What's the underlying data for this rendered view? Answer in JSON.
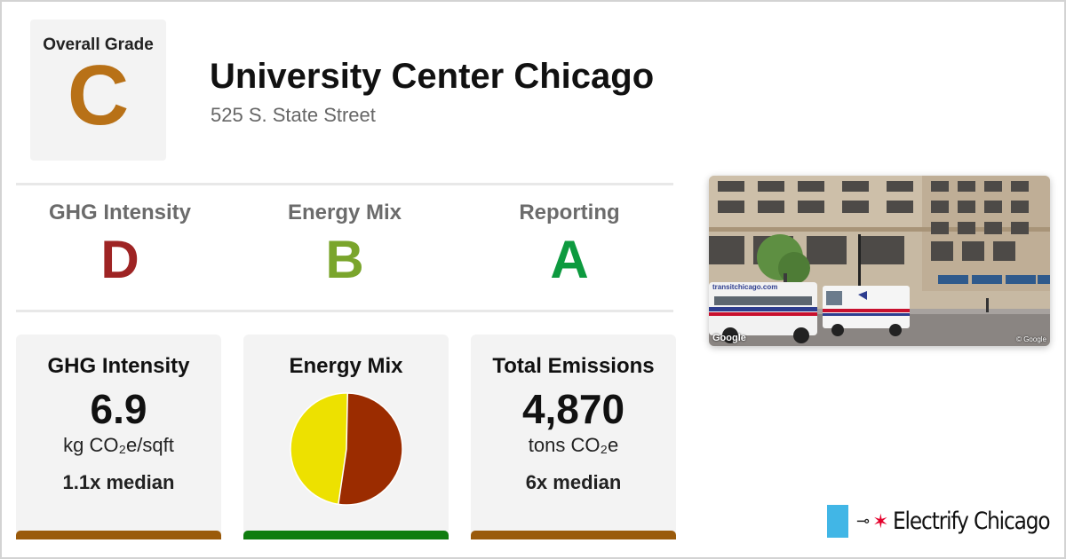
{
  "overall": {
    "label": "Overall Grade",
    "grade": "C",
    "color": "#b87117"
  },
  "building": {
    "name": "University Center Chicago",
    "address": "525 S. State Street"
  },
  "grades": [
    {
      "label": "GHG Intensity",
      "grade": "D",
      "color": "#9e2424"
    },
    {
      "label": "Energy Mix",
      "grade": "B",
      "color": "#7aa52c"
    },
    {
      "label": "Reporting",
      "grade": "A",
      "color": "#0d9a3f"
    }
  ],
  "cards": {
    "ghg": {
      "title": "GHG Intensity",
      "value": "6.9",
      "unit": "kg CO₂e/sqft",
      "median": "1.1x median",
      "bar_color": "#9a5a0b"
    },
    "mix": {
      "title": "Energy Mix",
      "bar_color": "#0f7d0f",
      "fuel_fraction": 0.52,
      "fuel_color": "#9b2c00",
      "electric_color": "#ede100"
    },
    "emissions": {
      "title": "Total Emissions",
      "value": "4,870",
      "unit": "tons CO₂e",
      "median": "6x median",
      "bar_color": "#9a5a0b"
    }
  },
  "photo": {
    "credit": "Google",
    "copyright": "© Google",
    "bus_sign": "transitchicago.com"
  },
  "logo": {
    "text": "Electrify Chicago",
    "plug_icon": "plug-icon",
    "star_icon": "star-icon"
  }
}
